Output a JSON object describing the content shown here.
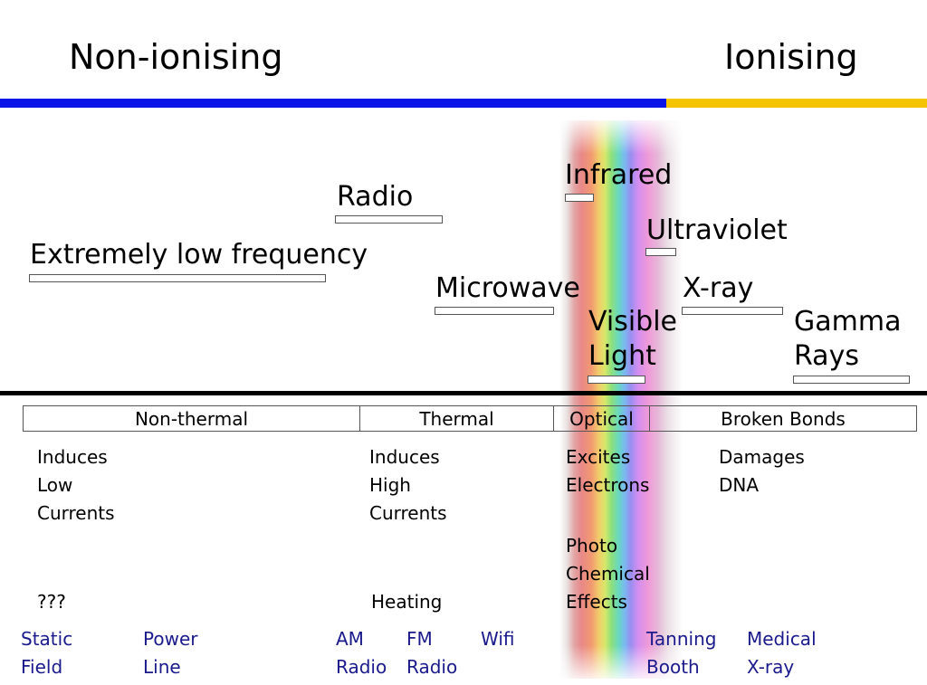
{
  "header": {
    "non_ionising": "Non-ionising",
    "ionising": "Ionising"
  },
  "colors": {
    "non_ionising_bar": "#0a14e6",
    "ionising_bar": "#f5c400",
    "application_text": "#1a1a8c"
  },
  "bands": {
    "elf": "Extremely low frequency",
    "radio": "Radio",
    "microwave": "Microwave",
    "infrared": "Infrared",
    "visible_line1": "Visible",
    "visible_line2": "Light",
    "ultraviolet": "Ultraviolet",
    "xray": "X-ray",
    "gamma_line1": "Gamma",
    "gamma_line2": "Rays"
  },
  "categories": [
    "Non-thermal",
    "Thermal",
    "Optical",
    "Broken Bonds"
  ],
  "effects": {
    "non_thermal": [
      "Induces",
      "Low",
      "Currents"
    ],
    "non_thermal_unknown": "???",
    "thermal": [
      "Induces",
      "High",
      "Currents"
    ],
    "thermal_heating": "Heating",
    "optical_excites": [
      "Excites",
      "Electrons"
    ],
    "optical_photo": [
      "Photo",
      "Chemical",
      "Effects"
    ],
    "broken": [
      "Damages",
      "DNA"
    ]
  },
  "applications": {
    "static_field": [
      "Static",
      "Field"
    ],
    "power_line": [
      "Power",
      "Line"
    ],
    "am_radio": [
      "AM",
      "Radio"
    ],
    "fm_radio": [
      "FM",
      "Radio"
    ],
    "wifi": "Wifi",
    "tanning_booth": [
      "Tanning",
      "Booth"
    ],
    "medical_xray": [
      "Medical",
      "X-ray"
    ]
  }
}
